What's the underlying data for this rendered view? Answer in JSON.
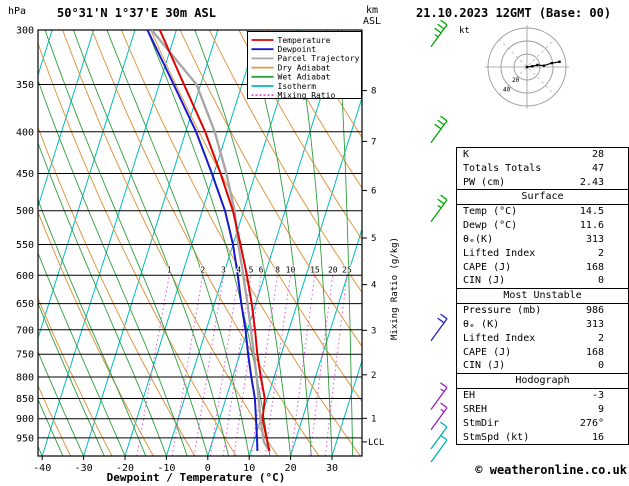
{
  "header": {
    "station": "50°31'N 1°37'E 30m ASL",
    "datetime": "21.10.2023 12GMT (Base: 00)",
    "left_axis_unit": "hPa",
    "right_axis_unit_line1": "km",
    "right_axis_unit_line2": "ASL"
  },
  "footer": {
    "xlabel": "Dewpoint / Temperature (°C)",
    "copyright": "© weatheronline.co.uk"
  },
  "colors": {
    "temperature": "#e00000",
    "dewpoint": "#1818cc",
    "parcel": "#a6a6a6",
    "dry_adiabat": "#dd9944",
    "wet_adiabat": "#2e9e3e",
    "isotherm": "#00bcbc",
    "mixing_ratio": "#dd55dd",
    "wind_green": "#00aa00",
    "wind_blue": "#2222cc",
    "wind_purple": "#9922bb",
    "wind_cyan": "#00b4b4",
    "hodo_ring": "#999999"
  },
  "legend": [
    {
      "key": "temperature",
      "label": "Temperature",
      "dashed": false
    },
    {
      "key": "dewpoint",
      "label": "Dewpoint",
      "dashed": false
    },
    {
      "key": "parcel",
      "label": "Parcel Trajectory",
      "dashed": false
    },
    {
      "key": "dry_adiabat",
      "label": "Dry Adiabat",
      "dashed": false
    },
    {
      "key": "wet_adiabat",
      "label": "Wet Adiabat",
      "dashed": false
    },
    {
      "key": "isotherm",
      "label": "Isotherm",
      "dashed": false
    },
    {
      "key": "mixing_ratio",
      "label": "Mixing Ratio",
      "dashed": true
    }
  ],
  "chart_data": {
    "type": "skewt_log_p_sounding",
    "pressure_ticks_hpa": [
      300,
      350,
      400,
      450,
      500,
      550,
      600,
      650,
      700,
      750,
      800,
      850,
      900,
      950
    ],
    "temp_ticks_c": [
      -40,
      -30,
      -20,
      -10,
      0,
      10,
      20,
      30
    ],
    "km_ticks": [
      {
        "km": 1,
        "p": 899
      },
      {
        "km": 2,
        "p": 795
      },
      {
        "km": 3,
        "p": 701
      },
      {
        "km": 4,
        "p": 616
      },
      {
        "km": 5,
        "p": 540
      },
      {
        "km": 6,
        "p": 472
      },
      {
        "km": 7,
        "p": 411
      },
      {
        "km": 8,
        "p": 356
      }
    ],
    "lcl": {
      "label": "LCL",
      "p": 961
    },
    "mixing_ratio_axis_label": "Mixing Ratio (g/kg)",
    "mixing_ratio_lines_gkg": [
      1,
      2,
      3,
      4,
      5,
      6,
      8,
      10,
      15,
      20,
      25
    ],
    "isotherm_step_c": 10,
    "dry_adiabat_step_k": 10,
    "wet_adiabat_step_c": 5,
    "temperature_profile_p_t": [
      [
        986,
        14.5
      ],
      [
        950,
        12.8
      ],
      [
        900,
        10.4
      ],
      [
        850,
        9.4
      ],
      [
        800,
        6.8
      ],
      [
        750,
        4.2
      ],
      [
        700,
        1.8
      ],
      [
        650,
        -1.0
      ],
      [
        600,
        -4.3
      ],
      [
        550,
        -8.2
      ],
      [
        500,
        -12.6
      ],
      [
        450,
        -18.4
      ],
      [
        400,
        -25.3
      ],
      [
        350,
        -34.0
      ],
      [
        300,
        -44.0
      ]
    ],
    "dewpoint_profile_p_t": [
      [
        986,
        11.6
      ],
      [
        950,
        10.5
      ],
      [
        900,
        8.8
      ],
      [
        850,
        7.0
      ],
      [
        800,
        4.5
      ],
      [
        750,
        2.0
      ],
      [
        700,
        -0.5
      ],
      [
        650,
        -3.5
      ],
      [
        600,
        -6.5
      ],
      [
        550,
        -10.0
      ],
      [
        500,
        -14.5
      ],
      [
        450,
        -20.5
      ],
      [
        400,
        -27.5
      ],
      [
        350,
        -36.5
      ],
      [
        300,
        -47.0
      ]
    ],
    "parcel_profile_p_t": [
      [
        986,
        14.5
      ],
      [
        960,
        12.4
      ],
      [
        900,
        9.9
      ],
      [
        850,
        7.9
      ],
      [
        800,
        5.8
      ],
      [
        750,
        3.4
      ],
      [
        700,
        0.8
      ],
      [
        650,
        -2.0
      ],
      [
        600,
        -5.2
      ],
      [
        550,
        -8.7
      ],
      [
        500,
        -12.2
      ],
      [
        450,
        -17.0
      ],
      [
        400,
        -23.0
      ],
      [
        350,
        -31.0
      ],
      [
        300,
        -46.0
      ]
    ],
    "wind_barbs": [
      {
        "p": 305,
        "speed_kt": 35,
        "color": "wind_green"
      },
      {
        "p": 400,
        "speed_kt": 30,
        "color": "wind_green"
      },
      {
        "p": 500,
        "speed_kt": 25,
        "color": "wind_green"
      },
      {
        "p": 700,
        "speed_kt": 20,
        "color": "wind_blue"
      },
      {
        "p": 850,
        "speed_kt": 15,
        "color": "wind_purple"
      },
      {
        "p": 900,
        "speed_kt": 15,
        "color": "wind_purple"
      },
      {
        "p": 950,
        "speed_kt": 10,
        "color": "wind_cyan"
      },
      {
        "p": 986,
        "speed_kt": 10,
        "color": "wind_cyan"
      }
    ],
    "hodograph": {
      "unit_label": "kt",
      "ring_radii_kt": [
        20,
        40,
        60
      ],
      "ring_labels": [
        "20",
        "40"
      ],
      "trace_kt": [
        [
          0,
          0
        ],
        [
          8,
          -1
        ],
        [
          16,
          -3
        ],
        [
          26,
          -2
        ],
        [
          38,
          -6
        ],
        [
          50,
          -8
        ]
      ]
    }
  },
  "table": {
    "sections": [
      {
        "header": null,
        "rows": [
          [
            "K",
            "28"
          ],
          [
            "Totals Totals",
            "47"
          ],
          [
            "PW (cm)",
            "2.43"
          ]
        ]
      },
      {
        "header": "Surface",
        "rows": [
          [
            "Temp (°C)",
            "14.5"
          ],
          [
            "Dewp (°C)",
            "11.6"
          ],
          [
            "θₑ(K)",
            "313"
          ],
          [
            "Lifted Index",
            "2"
          ],
          [
            "CAPE (J)",
            "168"
          ],
          [
            "CIN (J)",
            "0"
          ]
        ]
      },
      {
        "header": "Most Unstable",
        "rows": [
          [
            "Pressure (mb)",
            "986"
          ],
          [
            "θₑ (K)",
            "313"
          ],
          [
            "Lifted Index",
            "2"
          ],
          [
            "CAPE (J)",
            "168"
          ],
          [
            "CIN (J)",
            "0"
          ]
        ]
      },
      {
        "header": "Hodograph",
        "rows": [
          [
            "EH",
            "-3"
          ],
          [
            "SREH",
            "9"
          ],
          [
            "StmDir",
            "276°"
          ],
          [
            "StmSpd (kt)",
            "16"
          ]
        ]
      }
    ]
  }
}
